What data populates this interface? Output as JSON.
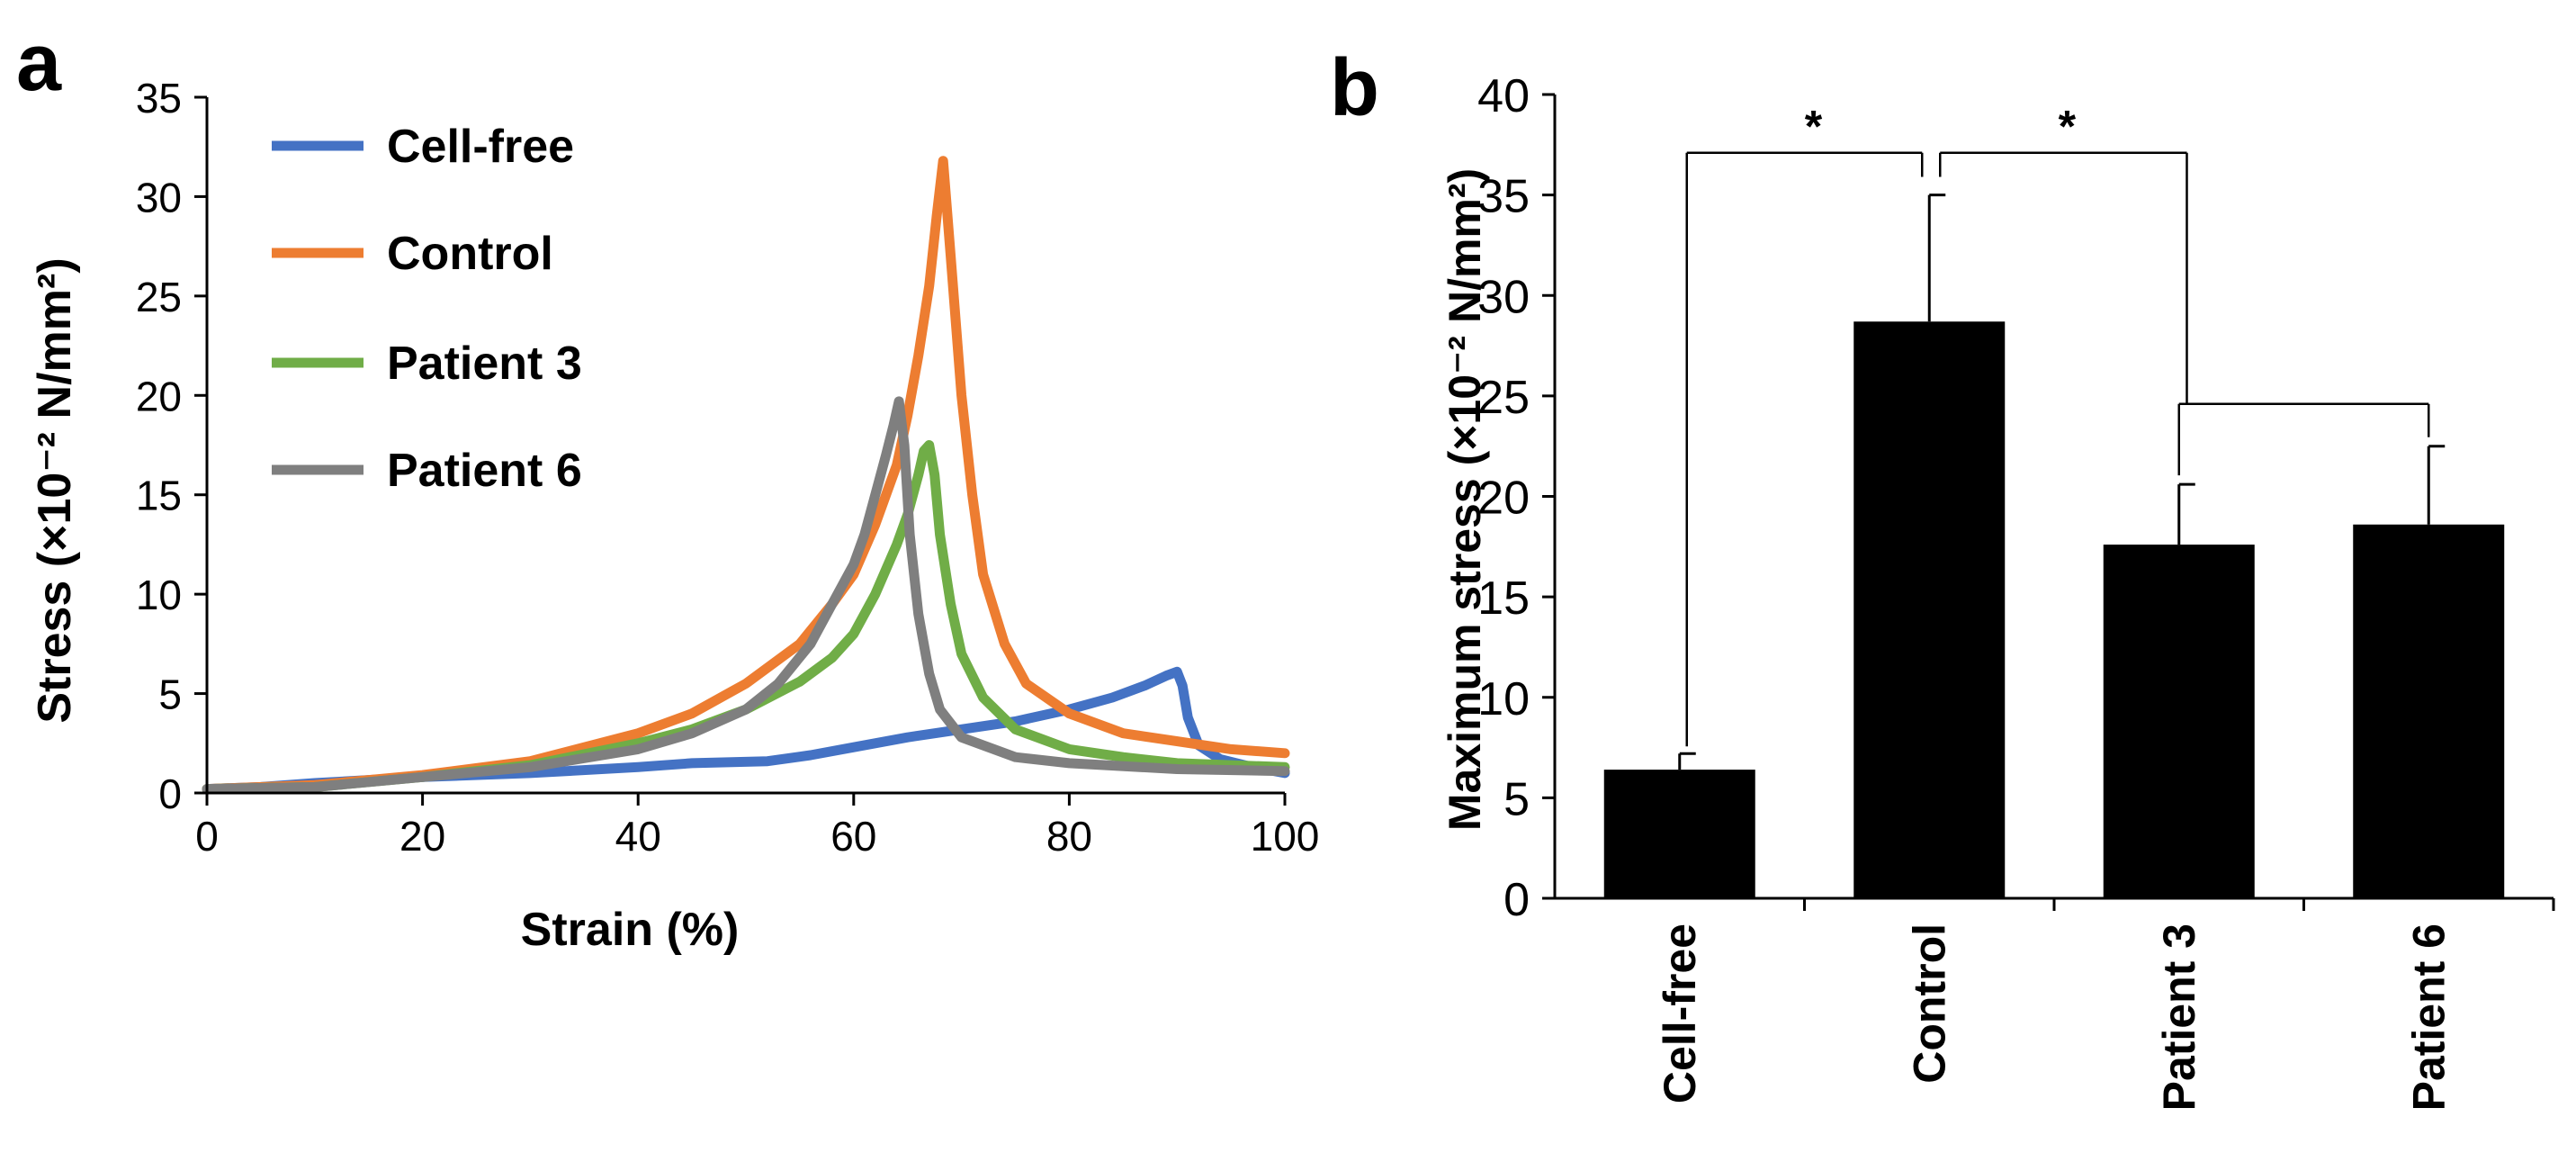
{
  "chart_data": [
    {
      "panel": "a",
      "type": "line",
      "xlabel": "Strain (%)",
      "ylabel": "Stress (×10⁻² N/mm²)",
      "xlim": [
        0,
        100
      ],
      "ylim": [
        0,
        35
      ],
      "xticks": [
        "0",
        "20",
        "40",
        "60",
        "80",
        "100"
      ],
      "yticks": [
        "0",
        "5",
        "10",
        "15",
        "20",
        "25",
        "30",
        "35"
      ],
      "legend_position": "top-left",
      "grid": false,
      "series": [
        {
          "name": "Cell-free",
          "color": "#4472C4",
          "x": [
            0,
            5,
            10,
            20,
            30,
            40,
            45,
            52,
            56,
            60,
            65,
            70,
            75,
            80,
            84,
            87,
            89,
            90,
            90.5,
            91,
            92,
            94,
            97,
            100
          ],
          "y": [
            0.2,
            0.3,
            0.5,
            0.8,
            1.0,
            1.3,
            1.5,
            1.6,
            1.9,
            2.3,
            2.8,
            3.2,
            3.6,
            4.2,
            4.8,
            5.4,
            5.9,
            6.1,
            5.4,
            3.8,
            2.4,
            1.7,
            1.3,
            1.0
          ]
        },
        {
          "name": "Control",
          "color": "#ED7D31",
          "x": [
            0,
            10,
            20,
            30,
            40,
            45,
            50,
            55,
            58,
            60,
            62,
            64,
            65,
            66,
            67,
            67.7,
            68.3,
            69,
            70,
            71,
            72,
            74,
            76,
            80,
            85,
            90,
            95,
            100
          ],
          "y": [
            0.2,
            0.4,
            0.9,
            1.6,
            3.0,
            4.0,
            5.5,
            7.5,
            9.5,
            11.0,
            13.5,
            16.5,
            19.0,
            22.0,
            25.5,
            29.0,
            31.8,
            27.0,
            20.0,
            15.0,
            11.0,
            7.5,
            5.5,
            4.0,
            3.0,
            2.6,
            2.2,
            2.0
          ]
        },
        {
          "name": "Patient 3",
          "color": "#70AD47",
          "x": [
            0,
            10,
            20,
            30,
            40,
            45,
            50,
            55,
            58,
            60,
            62,
            64,
            65,
            66,
            66.5,
            67,
            67.5,
            68,
            69,
            70,
            72,
            75,
            80,
            85,
            90,
            95,
            100
          ],
          "y": [
            0.2,
            0.3,
            0.8,
            1.4,
            2.5,
            3.2,
            4.2,
            5.6,
            6.8,
            8.0,
            10.0,
            12.5,
            14.0,
            16.0,
            17.2,
            17.5,
            16.0,
            13.0,
            9.5,
            7.0,
            4.8,
            3.2,
            2.2,
            1.8,
            1.5,
            1.4,
            1.3
          ]
        },
        {
          "name": "Patient 6",
          "color": "#7F7F7F",
          "x": [
            0,
            10,
            20,
            30,
            40,
            45,
            50,
            53,
            56,
            58,
            60,
            61,
            62,
            63,
            63.7,
            64.2,
            64.7,
            65.2,
            66,
            67,
            68,
            70,
            75,
            80,
            90,
            100
          ],
          "y": [
            0.2,
            0.3,
            0.8,
            1.3,
            2.2,
            3.0,
            4.2,
            5.5,
            7.5,
            9.5,
            11.5,
            13.0,
            15.0,
            17.0,
            18.5,
            19.7,
            17.5,
            13.0,
            9.0,
            6.0,
            4.2,
            2.8,
            1.8,
            1.5,
            1.2,
            1.1
          ]
        }
      ]
    },
    {
      "panel": "b",
      "type": "bar",
      "ylabel": "Maximum stress (×10⁻² N/mm²)",
      "ylim": [
        0,
        40
      ],
      "yticks": [
        "0",
        "5",
        "10",
        "15",
        "20",
        "25",
        "30",
        "35",
        "40"
      ],
      "categories": [
        "Cell-free",
        "Control",
        "Patient 3",
        "Patient 6"
      ],
      "values": [
        6.4,
        28.7,
        17.6,
        18.6
      ],
      "errors": [
        0.8,
        6.3,
        3.0,
        3.9
      ],
      "bar_color": "#000000",
      "annotations": [
        "*",
        "*"
      ]
    }
  ],
  "panel_labels": {
    "a": "a",
    "b": "b"
  }
}
